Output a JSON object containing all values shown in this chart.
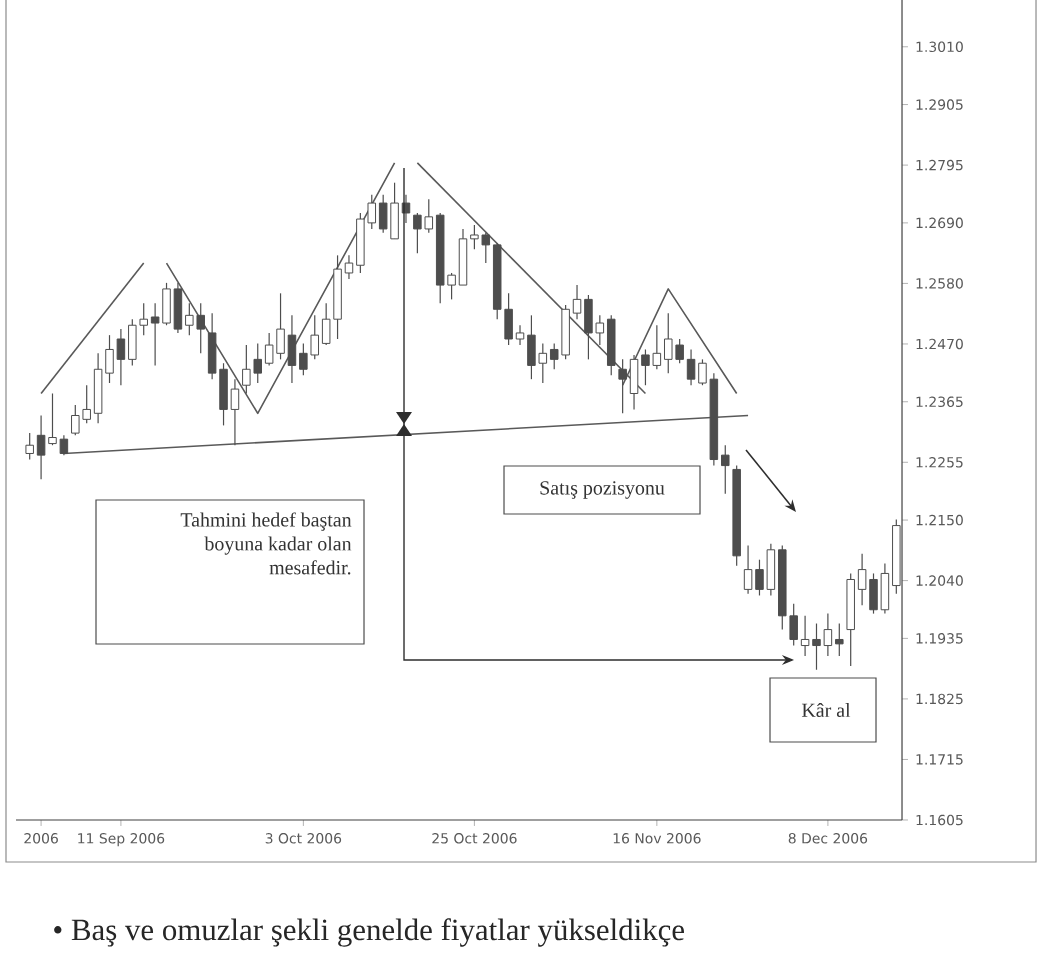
{
  "chart_data": {
    "type": "candlestick",
    "color": "#4d4d4d",
    "categories": [
      null,
      "2006",
      null,
      null,
      null,
      null,
      null,
      null,
      "11 Sep 2006",
      null,
      null,
      null,
      null,
      null,
      null,
      null,
      null,
      null,
      null,
      null,
      null,
      null,
      null,
      null,
      "3 Oct 2006",
      null,
      null,
      null,
      null,
      null,
      null,
      null,
      null,
      null,
      null,
      null,
      null,
      null,
      null,
      "25 Oct 2006",
      null,
      null,
      null,
      null,
      null,
      null,
      null,
      null,
      null,
      null,
      null,
      null,
      null,
      null,
      null,
      "16 Nov 2006",
      null,
      null,
      null,
      null,
      null,
      null,
      null,
      null,
      null,
      null,
      null,
      null,
      null,
      null,
      "8 Dec 2006",
      null,
      null,
      null,
      null,
      null,
      null
    ],
    "ohlc": [
      [
        1.2271,
        1.2308,
        1.226,
        1.2286
      ],
      [
        1.2304,
        1.234,
        1.2224,
        1.2268
      ],
      [
        1.2289,
        1.238,
        1.2286,
        1.23
      ],
      [
        1.2297,
        1.2304,
        1.2268,
        1.2271
      ],
      [
        1.2308,
        1.2359,
        1.2304,
        1.234
      ],
      [
        1.2333,
        1.2395,
        1.2326,
        1.2351
      ],
      [
        1.2344,
        1.2453,
        1.2326,
        1.2424
      ],
      [
        1.2417,
        1.2486,
        1.2399,
        1.246
      ],
      [
        1.2479,
        1.2497,
        1.2395,
        1.2442
      ],
      [
        1.2442,
        1.2515,
        1.2431,
        1.2504
      ],
      [
        1.2504,
        1.2544,
        1.2486,
        1.2515
      ],
      [
        1.2519,
        1.2544,
        1.2431,
        1.2508
      ],
      [
        1.2508,
        1.2581,
        1.2504,
        1.257
      ],
      [
        1.257,
        1.2581,
        1.249,
        1.2497
      ],
      [
        1.2504,
        1.2544,
        1.2486,
        1.2522
      ],
      [
        1.2522,
        1.2544,
        1.2453,
        1.2497
      ],
      [
        1.249,
        1.2526,
        1.2406,
        1.2417
      ],
      [
        1.2424,
        1.2435,
        1.2322,
        1.2351
      ],
      [
        1.2351,
        1.2406,
        1.2286,
        1.2388
      ],
      [
        1.2395,
        1.2468,
        1.238,
        1.2424
      ],
      [
        1.2442,
        1.2471,
        1.2399,
        1.2417
      ],
      [
        1.2435,
        1.249,
        1.2431,
        1.2468
      ],
      [
        1.2453,
        1.2562,
        1.2442,
        1.2497
      ],
      [
        1.2486,
        1.2522,
        1.2399,
        1.2431
      ],
      [
        1.2453,
        1.2471,
        1.2413,
        1.2424
      ],
      [
        1.245,
        1.2522,
        1.2442,
        1.2486
      ],
      [
        1.2471,
        1.2544,
        1.2468,
        1.2515
      ],
      [
        1.2515,
        1.2631,
        1.2479,
        1.2606
      ],
      [
        1.2599,
        1.2631,
        1.2588,
        1.2617
      ],
      [
        1.2613,
        1.2708,
        1.2599,
        1.2697
      ],
      [
        1.269,
        1.2741,
        1.2679,
        1.2726
      ],
      [
        1.2726,
        1.2741,
        1.2672,
        1.2679
      ],
      [
        1.2661,
        1.2763,
        1.2661,
        1.2726
      ],
      [
        1.2726,
        1.2741,
        1.269,
        1.2708
      ],
      [
        1.2704,
        1.2708,
        1.2635,
        1.2679
      ],
      [
        1.2679,
        1.2733,
        1.2672,
        1.2701
      ],
      [
        1.2704,
        1.2708,
        1.2544,
        1.2577
      ],
      [
        1.2577,
        1.2599,
        1.2551,
        1.2595
      ],
      [
        1.2577,
        1.2679,
        1.2577,
        1.2661
      ],
      [
        1.2661,
        1.2686,
        1.2642,
        1.2668
      ],
      [
        1.2668,
        1.2672,
        1.2617,
        1.265
      ],
      [
        1.265,
        1.2653,
        1.2515,
        1.2533
      ],
      [
        1.2533,
        1.2562,
        1.2468,
        1.2479
      ],
      [
        1.2479,
        1.2504,
        1.2468,
        1.249
      ],
      [
        1.2486,
        1.2522,
        1.2406,
        1.2431
      ],
      [
        1.2435,
        1.2471,
        1.2399,
        1.2453
      ],
      [
        1.246,
        1.2471,
        1.2424,
        1.2442
      ],
      [
        1.245,
        1.2541,
        1.2442,
        1.2533
      ],
      [
        1.2526,
        1.2577,
        1.2515,
        1.2551
      ],
      [
        1.2551,
        1.2559,
        1.2442,
        1.249
      ],
      [
        1.249,
        1.2522,
        1.2468,
        1.2508
      ],
      [
        1.2515,
        1.2522,
        1.2413,
        1.2431
      ],
      [
        1.2424,
        1.2442,
        1.2344,
        1.2406
      ],
      [
        1.238,
        1.245,
        1.2351,
        1.2442
      ],
      [
        1.245,
        1.246,
        1.2395,
        1.2431
      ],
      [
        1.2431,
        1.2504,
        1.2424,
        1.2453
      ],
      [
        1.2442,
        1.2526,
        1.2417,
        1.2479
      ],
      [
        1.2468,
        1.2479,
        1.2435,
        1.2442
      ],
      [
        1.2442,
        1.246,
        1.2395,
        1.2406
      ],
      [
        1.2399,
        1.2442,
        1.2395,
        1.2435
      ],
      [
        1.2406,
        1.2417,
        1.2249,
        1.226
      ],
      [
        1.2268,
        1.2286,
        1.2198,
        1.2249
      ],
      [
        1.2242,
        1.2249,
        1.2067,
        1.2085
      ],
      [
        1.2024,
        1.2104,
        1.2016,
        1.206
      ],
      [
        1.206,
        1.2078,
        1.2013,
        1.2024
      ],
      [
        1.2024,
        1.2107,
        1.2013,
        1.2096
      ],
      [
        1.2096,
        1.2104,
        1.1951,
        1.1976
      ],
      [
        1.1976,
        1.1998,
        1.1922,
        1.1933
      ],
      [
        1.1922,
        1.1976,
        1.1903,
        1.1933
      ],
      [
        1.1933,
        1.1962,
        1.1878,
        1.1922
      ],
      [
        1.1922,
        1.198,
        1.1903,
        1.1951
      ],
      [
        1.1933,
        1.1962,
        1.1903,
        1.1925
      ],
      [
        1.1951,
        1.2053,
        1.1885,
        1.2042
      ],
      [
        1.2024,
        1.2089,
        1.1995,
        1.206
      ],
      [
        1.2042,
        1.2053,
        1.198,
        1.1987
      ],
      [
        1.1987,
        1.2071,
        1.198,
        1.2053
      ],
      [
        1.2031,
        1.2151,
        1.2016,
        1.214
      ]
    ],
    "series": [
      {
        "type": "line",
        "color": "#595959",
        "values": [
          null,
          1.238,
          null,
          null,
          null,
          null,
          null,
          null,
          null,
          null,
          1.2617,
          null,
          null,
          null,
          null,
          null,
          null,
          null,
          null,
          null,
          null,
          null,
          null,
          null,
          null,
          null,
          null,
          null,
          null,
          null,
          null,
          null,
          null,
          null,
          null,
          null,
          null,
          null,
          null,
          null,
          null,
          null,
          null,
          null,
          null,
          null,
          null,
          null,
          null,
          null,
          null,
          null,
          null,
          null,
          null,
          null,
          null,
          null,
          null,
          null,
          null,
          null,
          null,
          null,
          null,
          null,
          null,
          null,
          null,
          null,
          null,
          null,
          null,
          null,
          null,
          null,
          null
        ]
      },
      {
        "type": "line",
        "color": "#595959",
        "values": [
          null,
          null,
          null,
          null,
          null,
          null,
          null,
          null,
          null,
          null,
          null,
          null,
          1.2617,
          null,
          null,
          null,
          null,
          null,
          null,
          null,
          1.2344,
          null,
          null,
          null,
          null,
          null,
          null,
          null,
          null,
          null,
          null,
          null,
          1.2799,
          null,
          null,
          null,
          null,
          null,
          null,
          null,
          null,
          null,
          null,
          null,
          null,
          null,
          null,
          null,
          null,
          null,
          null,
          null,
          null,
          null,
          null,
          null,
          null,
          null,
          null,
          null,
          null,
          null,
          null,
          null,
          null,
          null,
          null,
          null,
          null,
          null,
          null,
          null,
          null,
          null,
          null,
          null,
          null
        ]
      },
      {
        "type": "line",
        "color": "#595959",
        "values": [
          null,
          null,
          null,
          null,
          null,
          null,
          null,
          null,
          null,
          null,
          null,
          null,
          null,
          null,
          null,
          null,
          null,
          null,
          null,
          null,
          null,
          null,
          null,
          null,
          null,
          null,
          null,
          null,
          null,
          null,
          null,
          null,
          null,
          null,
          1.2799,
          null,
          null,
          null,
          null,
          null,
          null,
          null,
          null,
          null,
          null,
          null,
          null,
          null,
          null,
          null,
          null,
          null,
          null,
          null,
          1.238,
          null,
          null,
          null,
          null,
          null,
          null,
          null,
          null,
          null,
          null,
          null,
          null,
          null,
          null,
          null,
          null,
          null,
          null,
          null,
          null,
          null,
          null
        ]
      },
      {
        "type": "line",
        "color": "#595959",
        "values": [
          null,
          null,
          null,
          null,
          null,
          null,
          null,
          null,
          null,
          null,
          null,
          null,
          null,
          null,
          null,
          null,
          null,
          null,
          null,
          null,
          null,
          null,
          null,
          null,
          null,
          null,
          null,
          null,
          null,
          null,
          null,
          null,
          null,
          null,
          null,
          null,
          null,
          null,
          null,
          null,
          null,
          null,
          null,
          null,
          null,
          null,
          null,
          null,
          null,
          null,
          null,
          null,
          1.2395,
          null,
          null,
          null,
          1.257,
          null,
          null,
          null,
          null,
          null,
          1.238,
          null,
          null,
          null,
          null,
          null,
          null,
          null,
          null,
          null,
          null,
          null,
          null,
          null,
          null
        ]
      },
      {
        "type": "line",
        "color": "#595959",
        "values": [
          null,
          null,
          null,
          1.2271,
          null,
          null,
          null,
          null,
          null,
          null,
          null,
          null,
          null,
          null,
          null,
          null,
          null,
          null,
          null,
          null,
          null,
          null,
          null,
          null,
          null,
          null,
          null,
          null,
          null,
          null,
          null,
          null,
          null,
          null,
          null,
          null,
          null,
          null,
          null,
          null,
          null,
          null,
          null,
          null,
          null,
          null,
          null,
          null,
          null,
          null,
          null,
          null,
          null,
          null,
          null,
          null,
          null,
          null,
          null,
          null,
          null,
          null,
          null,
          1.234,
          null,
          null,
          null,
          null,
          null,
          null,
          null,
          null,
          null,
          null,
          null,
          null,
          null
        ]
      }
    ],
    "ylim": [
      1.1605,
      1.3095
    ],
    "yticks": [
      1.1605,
      1.1715,
      1.1825,
      1.1935,
      {
        "value": 1.204,
        "label": "1.2040"
      },
      {
        "value": 1.215,
        "label": "1.2150"
      },
      1.2255,
      1.2365,
      {
        "value": 1.247,
        "label": "1.2470"
      },
      {
        "value": 1.258,
        "label": "1.2580"
      },
      {
        "value": 1.269,
        "label": "1.2690"
      },
      1.2795,
      1.2905,
      {
        "value": 1.301,
        "label": "1.3010"
      }
    ],
    "annotations": [
      "Tahmini hedef baştan boyuna kadar olan mesafedir.",
      "Satış pozisyonu",
      "Kâr al",
      "• Baş ve omuzlar şekli genelde fiyatlar yükseldikçe"
    ]
  }
}
